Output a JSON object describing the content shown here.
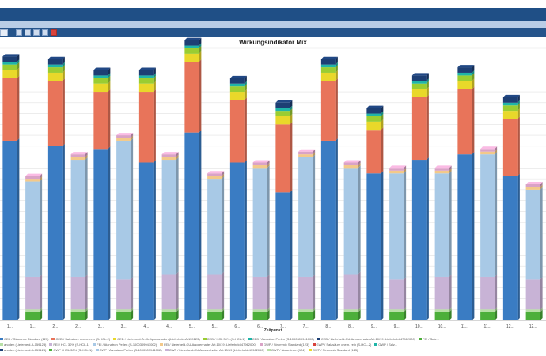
{
  "colors": {
    "titlebar": "#1f4f86",
    "menubar": "#b9cde6",
    "toolbar": "#25548b"
  },
  "toolbar": {
    "icons": [
      "field",
      "save-icon",
      "copy-icon",
      "print-icon",
      "refresh-icon",
      "chart-icon"
    ]
  },
  "chart_data": {
    "type": "bar",
    "title": "Wirkungsindikator Mix",
    "xlabel": "Zeitpunkt",
    "ylabel": "",
    "ylim": [
      0,
      100
    ],
    "grid": true,
    "legend": "bottom",
    "categories": [
      "1...",
      "1...",
      "2...",
      "2...",
      "3...",
      "3...",
      "4...",
      "4...",
      "5...",
      "5...",
      "6...",
      "6...",
      "7...",
      "7...",
      "8...",
      "8...",
      "9...",
      "9...",
      "10...",
      "10...",
      "11...",
      "11...",
      "12...",
      "12..."
    ],
    "series": [
      {
        "color": "#3a7cc3",
        "values": [
          66,
          0,
          64,
          0,
          63,
          0,
          58,
          0,
          69,
          0,
          58,
          0,
          47,
          0,
          66,
          0,
          54,
          0,
          59,
          0,
          61,
          0,
          53,
          0
        ]
      },
      {
        "color": "#e8745a",
        "values": [
          23,
          0,
          24,
          0,
          21,
          0,
          26,
          0,
          26,
          0,
          23,
          0,
          25,
          0,
          22,
          0,
          16,
          0,
          23,
          0,
          24,
          0,
          21,
          0
        ]
      },
      {
        "color": "#e9d82a",
        "values": [
          3,
          0,
          3,
          0,
          3,
          0,
          3,
          0,
          3,
          0,
          3,
          0,
          3,
          0,
          3,
          0,
          3,
          0,
          3,
          0,
          3,
          0,
          3,
          0
        ]
      },
      {
        "color": "#9acd32",
        "values": [
          2,
          0,
          2,
          0,
          2,
          0,
          2,
          0,
          2,
          0,
          2,
          0,
          2,
          0,
          2,
          0,
          2,
          0,
          2,
          0,
          2,
          0,
          2,
          0
        ]
      },
      {
        "color": "#1fb5a8",
        "values": [
          1,
          0,
          1,
          0,
          1,
          0,
          1,
          0,
          1,
          0,
          1,
          0,
          1,
          0,
          1,
          0,
          1,
          0,
          1,
          0,
          1,
          0,
          1,
          0
        ]
      },
      {
        "color": "#1d3f74",
        "values": [
          2,
          0,
          2,
          0,
          2,
          0,
          2,
          0,
          2,
          0,
          2,
          0,
          2,
          0,
          2,
          0,
          2,
          0,
          2,
          0,
          2,
          0,
          2,
          0
        ]
      },
      {
        "color": "#4caf3a",
        "values": [
          0,
          3,
          0,
          3,
          0,
          3,
          0,
          3,
          0,
          3,
          0,
          3,
          0,
          3,
          0,
          3,
          0,
          3,
          0,
          3,
          0,
          3,
          0,
          3
        ]
      },
      {
        "color": "#b7e0a6",
        "values": [
          0,
          1,
          0,
          1,
          0,
          1,
          0,
          1,
          0,
          1,
          0,
          1,
          0,
          1,
          0,
          1,
          0,
          1,
          0,
          1,
          0,
          1,
          0,
          1
        ]
      },
      {
        "color": "#c8b3d6",
        "values": [
          0,
          12,
          0,
          12,
          0,
          11,
          0,
          13,
          0,
          13,
          0,
          12,
          0,
          12,
          0,
          13,
          0,
          11,
          0,
          12,
          0,
          12,
          0,
          11
        ]
      },
      {
        "color": "#a8c9e6",
        "values": [
          0,
          35,
          0,
          43,
          0,
          51,
          0,
          42,
          0,
          35,
          0,
          40,
          0,
          44,
          0,
          39,
          0,
          39,
          0,
          38,
          0,
          45,
          0,
          33
        ]
      },
      {
        "color": "#f3c98a",
        "values": [
          0,
          1,
          0,
          1,
          0,
          1,
          0,
          1,
          0,
          1,
          0,
          1,
          0,
          1,
          0,
          1,
          0,
          1,
          0,
          1,
          0,
          1,
          0,
          1
        ]
      },
      {
        "color": "#d9a3c6",
        "values": [
          0,
          1,
          0,
          1,
          0,
          1,
          0,
          1,
          0,
          1,
          0,
          1,
          0,
          1,
          0,
          1,
          0,
          1,
          0,
          1,
          0,
          1,
          0,
          1
        ]
      }
    ]
  },
  "legend_rows": [
    [
      {
        "label": "CED / Strommix Standard (123)",
        "color": "#3a7cc3"
      },
      {
        "label": "CED / Salzsäure chem. rein (S-HCL-2)",
        "color": "#e8745a"
      },
      {
        "label": "CED / Lieferheld-Zn Knüppelanoden (Lieferheld-A-159123)",
        "color": "#e9d82a"
      },
      {
        "label": "CED / HCL 30% (S-HCL-1)",
        "color": "#9acd32"
      },
      {
        "label": "CED / Atznatron Perlen (S-1000309941002)",
        "color": "#1fb5a8"
      },
      {
        "label": "CED / Lieferheld-CU-Anodenhalter Art.10/19 (Lieferheld-47962000)",
        "color": "#1d3f74"
      },
      {
        "label": "FEI / Salz...",
        "color": "#4caf3a"
      }
    ],
    [
      {
        "label": "anoden (Lieferheld-A-159123)",
        "color": "#b7e0a6"
      },
      {
        "label": "FEI / HCL 30% (S-HCL-1)",
        "color": "#c8b3d6"
      },
      {
        "label": "FEI / Atznatron Perlen (S-1000309941002)",
        "color": "#a8c9e6"
      },
      {
        "label": "FEI / Lieferheld-CU-Anodenhalter Art.10/19 (Lieferheld-47962000)",
        "color": "#f3c98a"
      },
      {
        "label": "GWP / Strommix Standard (123)",
        "color": "#d9a3c6"
      },
      {
        "label": "GWP / Salzsäure chem. rein (S-HCL-2)",
        "color": "#d9423b"
      },
      {
        "label": "GWP / Salz...",
        "color": "#1fb5a8"
      }
    ],
    [
      {
        "label": "anoden (Lieferheld-A-159123)",
        "color": "#1d3f74"
      },
      {
        "label": "GWP / HCL 30% (S-HCL-1)",
        "color": "#4caf3a"
      },
      {
        "label": "GWP / Atznatron Perlen (S-1000309941002)",
        "color": "#a8c9e6"
      },
      {
        "label": "GWP / Lieferheld-CU-Anodenhalter Art.10/19 (Lieferheld-47962000)",
        "color": "#c8b3d6"
      },
      {
        "label": "GWP / Naturstrom (124)",
        "color": "#b7e0a6"
      },
      {
        "label": "GWP / Strommix Standard (123)",
        "color": "#e9d82a"
      }
    ]
  ]
}
